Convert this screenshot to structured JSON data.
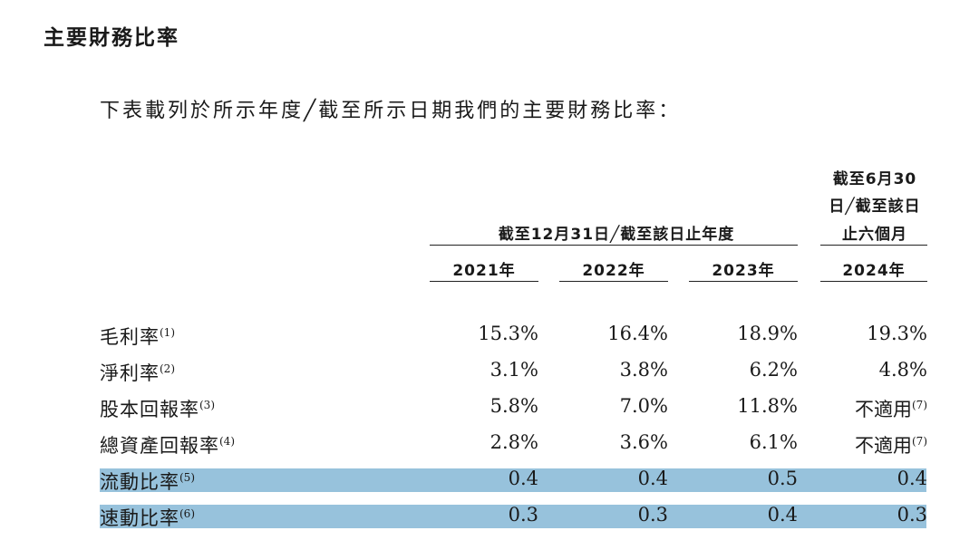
{
  "section_title": "主要財務比率",
  "intro": "下表載列於所示年度╱截至所示日期我們的主要財務比率：",
  "header": {
    "group_annual": "截至12月31日╱截至該日止年度",
    "group_interim_lines": [
      "截至6月30",
      "日╱截至該日",
      "止六個月"
    ],
    "years": [
      "2021年",
      "2022年",
      "2023年",
      "2024年"
    ]
  },
  "rows": [
    {
      "label": "毛利率",
      "note": "(1)",
      "values": [
        {
          "v": "15.3%"
        },
        {
          "v": "16.4%"
        },
        {
          "v": "18.9%"
        },
        {
          "v": "19.3%"
        }
      ],
      "highlight": false
    },
    {
      "label": "淨利率",
      "note": "(2)",
      "values": [
        {
          "v": "3.1%"
        },
        {
          "v": "3.8%"
        },
        {
          "v": "6.2%"
        },
        {
          "v": "4.8%"
        }
      ],
      "highlight": false
    },
    {
      "label": "股本回報率",
      "note": "(3)",
      "values": [
        {
          "v": "5.8%"
        },
        {
          "v": "7.0%"
        },
        {
          "v": "11.8%"
        },
        {
          "v": "不適用",
          "note": "(7)"
        }
      ],
      "highlight": false
    },
    {
      "label": "總資產回報率",
      "note": "(4)",
      "values": [
        {
          "v": "2.8%"
        },
        {
          "v": "3.6%"
        },
        {
          "v": "6.1%"
        },
        {
          "v": "不適用",
          "note": "(7)"
        }
      ],
      "highlight": false
    },
    {
      "label": "流動比率",
      "note": "(5)",
      "values": [
        {
          "v": "0.4"
        },
        {
          "v": "0.4"
        },
        {
          "v": "0.5"
        },
        {
          "v": "0.4"
        }
      ],
      "highlight": true
    },
    {
      "label": "速動比率",
      "note": "(6)",
      "values": [
        {
          "v": "0.3"
        },
        {
          "v": "0.3"
        },
        {
          "v": "0.4"
        },
        {
          "v": "0.3"
        }
      ],
      "highlight": true
    }
  ],
  "highlight_color": "#97c2dc"
}
